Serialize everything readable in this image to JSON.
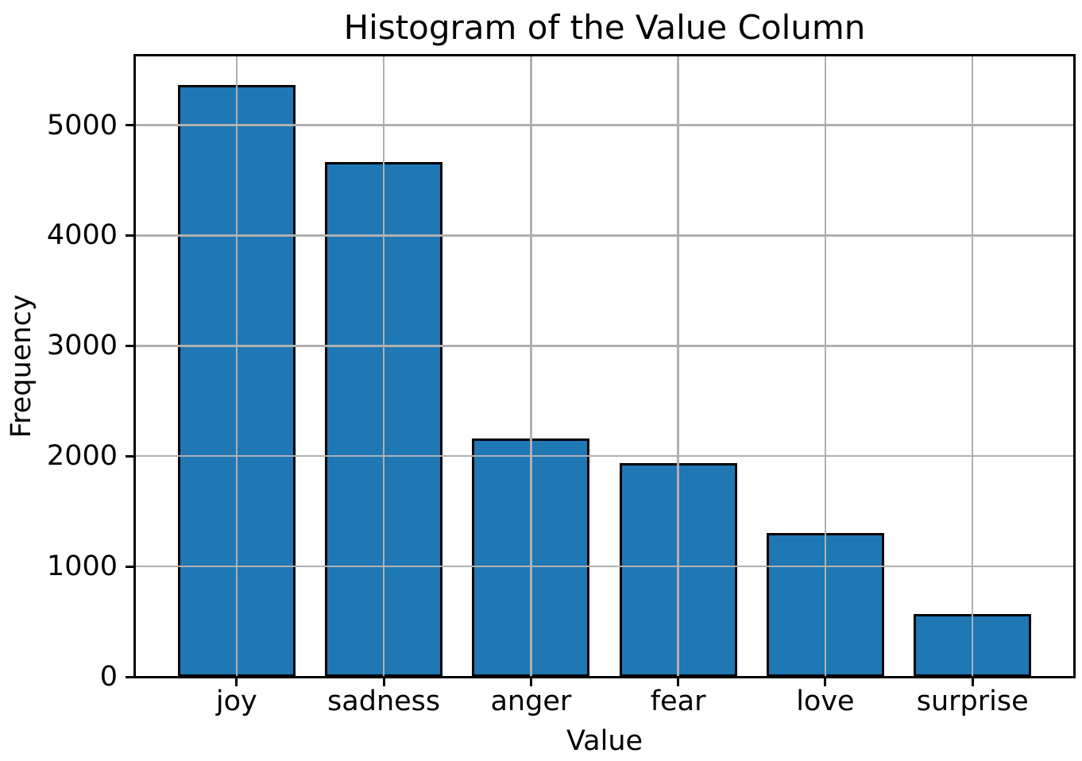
{
  "chart_data": {
    "type": "bar",
    "title": "Histogram of the Value Column",
    "xlabel": "Value",
    "ylabel": "Frequency",
    "categories": [
      "joy",
      "sadness",
      "anger",
      "fear",
      "love",
      "surprise"
    ],
    "values": [
      5362,
      4666,
      2159,
      1937,
      1304,
      572
    ],
    "yticks": [
      0,
      1000,
      2000,
      3000,
      4000,
      5000
    ],
    "ylim": [
      0,
      5630
    ],
    "grid": true,
    "grid_over_bars": true,
    "legend_position": "none",
    "bar_color": "#1f77b4",
    "bar_edge_color": "#000000",
    "grid_color": "#b0b0b0",
    "spine_color": "#000000",
    "text_color": "#000000",
    "background": "#ffffff"
  }
}
